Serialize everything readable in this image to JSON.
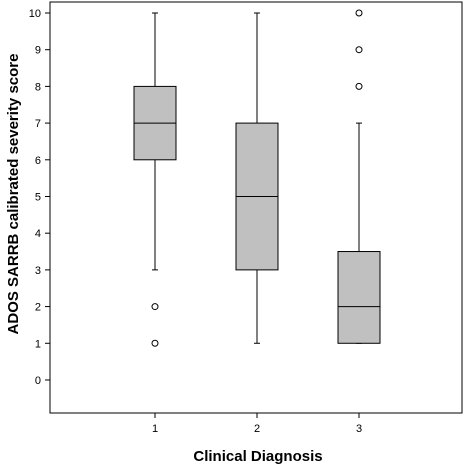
{
  "chart_data": {
    "type": "boxplot",
    "title": "",
    "xlabel": "Clinical Diagnosis",
    "ylabel": "ADOS SARRB calibrated severity score",
    "categories": [
      "1",
      "2",
      "3"
    ],
    "ylim": [
      -0.9,
      10.3
    ],
    "yticks": [
      0,
      1,
      2,
      3,
      4,
      5,
      6,
      7,
      8,
      9,
      10
    ],
    "grid": false,
    "legend": "none",
    "box_color": "#c0c0c0",
    "line_color": "#000000",
    "boxes": [
      {
        "category": "1",
        "whisker_low": 3,
        "q1": 6,
        "median": 7,
        "q3": 8,
        "whisker_high": 10,
        "outliers": [
          2,
          1
        ]
      },
      {
        "category": "2",
        "whisker_low": 1,
        "q1": 3,
        "median": 5,
        "q3": 7,
        "whisker_high": 10,
        "outliers": []
      },
      {
        "category": "3",
        "whisker_low": 1,
        "q1": 1,
        "median": 2,
        "q3": 3.5,
        "whisker_high": 7,
        "outliers": [
          8,
          9,
          10
        ]
      }
    ]
  }
}
